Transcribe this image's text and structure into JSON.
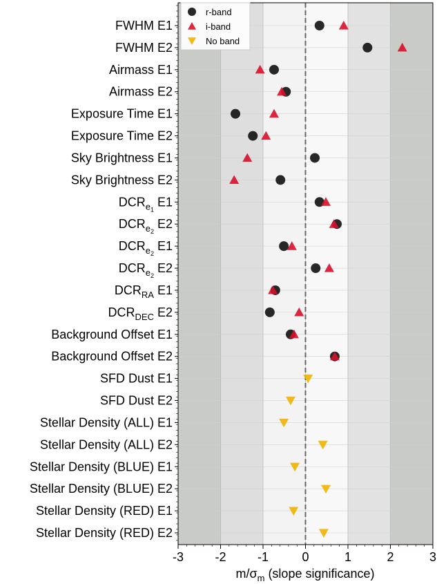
{
  "chart_data": {
    "type": "dot",
    "xlabel": {
      "main": "m/σ",
      "sub": "m",
      "rest": " (slope significance)"
    },
    "categories": [
      "FWHM E1",
      "FWHM E2",
      "Airmass E1",
      "Airmass E2",
      "Exposure Time E1",
      "Exposure Time E2",
      "Sky Brightness E1",
      "Sky Brightness E2",
      {
        "main": "DCR",
        "sub": "e",
        "subsub": "1",
        "suffix": "E1"
      },
      {
        "main": "DCR",
        "sub": "e",
        "subsub": "2",
        "suffix": "E2"
      },
      {
        "main": "DCR",
        "sub": "e",
        "subsub": "2",
        "suffix": "E1"
      },
      {
        "main": "DCR",
        "sub": "e",
        "subsub": "2",
        "suffix": "E2"
      },
      {
        "main": "DCR",
        "sub": "RA",
        "suffix": "E1"
      },
      {
        "main": "DCR",
        "sub": "DEC",
        "suffix": "E2"
      },
      "Background Offset E1",
      "Background Offset E2",
      "SFD Dust E1",
      "SFD Dust E2",
      "Stellar Density (ALL) E1",
      "Stellar Density (ALL) E2",
      "Stellar Density (BLUE) E1",
      "Stellar Density (BLUE) E2",
      "Stellar Density (RED) E1",
      "Stellar Density (RED) E2"
    ],
    "series": [
      {
        "name": "r-band",
        "color": "#111111",
        "marker": "circle",
        "values": [
          0.33,
          1.46,
          -0.74,
          -0.46,
          -1.65,
          -1.24,
          0.22,
          -0.59,
          0.33,
          0.74,
          -0.51,
          0.24,
          -0.71,
          -0.84,
          -0.35,
          0.69,
          null,
          null,
          null,
          null,
          null,
          null,
          null,
          null
        ]
      },
      {
        "name": "i-band",
        "color": "#d8102a",
        "marker": "triangle-up",
        "values": [
          0.9,
          2.28,
          -1.07,
          -0.56,
          -0.74,
          -0.93,
          -1.37,
          -1.68,
          0.48,
          0.67,
          -0.32,
          0.56,
          -0.77,
          -0.15,
          -0.27,
          0.69,
          null,
          null,
          null,
          null,
          null,
          null,
          null,
          null
        ]
      },
      {
        "name": "No band",
        "color": "#eeb400",
        "marker": "triangle-down",
        "values": [
          null,
          null,
          null,
          null,
          null,
          null,
          null,
          null,
          null,
          null,
          null,
          null,
          null,
          null,
          null,
          null,
          0.06,
          -0.35,
          -0.51,
          0.41,
          -0.25,
          0.48,
          -0.28,
          0.43
        ]
      }
    ],
    "xlim": [
      -3,
      3
    ],
    "xticks": [
      -3,
      -2,
      -1,
      0,
      1,
      2,
      3
    ],
    "reference_line": 0,
    "bands": [
      {
        "from": -3,
        "to": -2,
        "color": "#c9cbc7"
      },
      {
        "from": -2,
        "to": -1,
        "color": "#dedede"
      },
      {
        "from": -1,
        "to": 0,
        "color": "#f3f3f3"
      },
      {
        "from": 0,
        "to": 1,
        "color": "#f8f8f8"
      },
      {
        "from": 1,
        "to": 2,
        "color": "#e2e2e2"
      },
      {
        "from": 2,
        "to": 3,
        "color": "#c9cbc7"
      }
    ],
    "legend": "upper left"
  }
}
